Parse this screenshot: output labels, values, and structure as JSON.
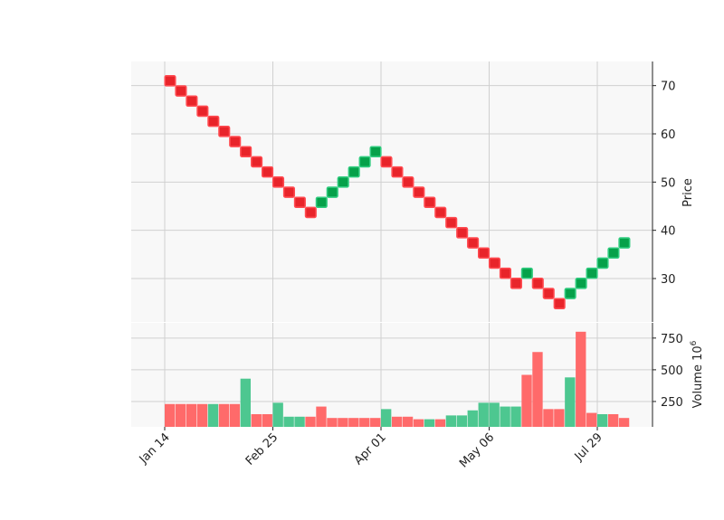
{
  "chart_data": {
    "type": "renko",
    "colors": {
      "up": "#06a14a",
      "down": "#e8242a",
      "up_volume": "#4dc790",
      "down_volume": "#ff6a6a",
      "background": "#f8f8f8",
      "grid": "#d0d0d0"
    },
    "x_ticks": [
      "Jan 14",
      "Feb 25",
      "Apr 01",
      "May 06",
      "Jul 29"
    ],
    "price_panel": {
      "ylabel": "Price",
      "yticks": [
        30,
        40,
        50,
        60,
        70
      ],
      "ylim": [
        21,
        75
      ],
      "brick_size": 2.1,
      "bricks": [
        {
          "i": 0,
          "close": 71.0,
          "dir": "down"
        },
        {
          "i": 1,
          "close": 68.9,
          "dir": "down"
        },
        {
          "i": 2,
          "close": 66.8,
          "dir": "down"
        },
        {
          "i": 3,
          "close": 64.7,
          "dir": "down"
        },
        {
          "i": 4,
          "close": 62.6,
          "dir": "down"
        },
        {
          "i": 5,
          "close": 60.5,
          "dir": "down"
        },
        {
          "i": 6,
          "close": 58.4,
          "dir": "down"
        },
        {
          "i": 7,
          "close": 56.3,
          "dir": "down"
        },
        {
          "i": 8,
          "close": 54.2,
          "dir": "down"
        },
        {
          "i": 9,
          "close": 52.1,
          "dir": "down"
        },
        {
          "i": 10,
          "close": 50.0,
          "dir": "down"
        },
        {
          "i": 11,
          "close": 47.9,
          "dir": "down"
        },
        {
          "i": 12,
          "close": 45.8,
          "dir": "down"
        },
        {
          "i": 13,
          "close": 43.7,
          "dir": "down"
        },
        {
          "i": 14,
          "close": 45.8,
          "dir": "up"
        },
        {
          "i": 15,
          "close": 47.9,
          "dir": "up"
        },
        {
          "i": 16,
          "close": 50.0,
          "dir": "up"
        },
        {
          "i": 17,
          "close": 52.1,
          "dir": "up"
        },
        {
          "i": 18,
          "close": 54.2,
          "dir": "up"
        },
        {
          "i": 19,
          "close": 56.3,
          "dir": "up"
        },
        {
          "i": 20,
          "close": 54.2,
          "dir": "down"
        },
        {
          "i": 21,
          "close": 52.1,
          "dir": "down"
        },
        {
          "i": 22,
          "close": 50.0,
          "dir": "down"
        },
        {
          "i": 23,
          "close": 47.9,
          "dir": "down"
        },
        {
          "i": 24,
          "close": 45.8,
          "dir": "down"
        },
        {
          "i": 25,
          "close": 43.7,
          "dir": "down"
        },
        {
          "i": 26,
          "close": 41.6,
          "dir": "down"
        },
        {
          "i": 27,
          "close": 39.5,
          "dir": "down"
        },
        {
          "i": 28,
          "close": 37.4,
          "dir": "down"
        },
        {
          "i": 29,
          "close": 35.3,
          "dir": "down"
        },
        {
          "i": 30,
          "close": 33.2,
          "dir": "down"
        },
        {
          "i": 31,
          "close": 31.1,
          "dir": "down"
        },
        {
          "i": 32,
          "close": 29.0,
          "dir": "down"
        },
        {
          "i": 33,
          "close": 31.1,
          "dir": "up"
        },
        {
          "i": 34,
          "close": 29.0,
          "dir": "down"
        },
        {
          "i": 35,
          "close": 26.9,
          "dir": "down"
        },
        {
          "i": 36,
          "close": 24.8,
          "dir": "down"
        },
        {
          "i": 37,
          "close": 26.9,
          "dir": "up"
        },
        {
          "i": 38,
          "close": 29.0,
          "dir": "up"
        },
        {
          "i": 39,
          "close": 31.1,
          "dir": "up"
        },
        {
          "i": 40,
          "close": 33.2,
          "dir": "up"
        },
        {
          "i": 41,
          "close": 35.3,
          "dir": "up"
        },
        {
          "i": 42,
          "close": 37.4,
          "dir": "up"
        }
      ]
    },
    "volume_panel": {
      "ylabel": "Volume  10",
      "ylabel_exponent": "6",
      "yticks": [
        250,
        500,
        750
      ],
      "ylim": [
        50,
        870
      ],
      "bars": [
        {
          "i": 0,
          "value": 230,
          "dir": "down"
        },
        {
          "i": 1,
          "value": 230,
          "dir": "down"
        },
        {
          "i": 2,
          "value": 230,
          "dir": "down"
        },
        {
          "i": 3,
          "value": 230,
          "dir": "down"
        },
        {
          "i": 4,
          "value": 230,
          "dir": "up"
        },
        {
          "i": 5,
          "value": 230,
          "dir": "down"
        },
        {
          "i": 6,
          "value": 230,
          "dir": "down"
        },
        {
          "i": 7,
          "value": 430,
          "dir": "up"
        },
        {
          "i": 8,
          "value": 150,
          "dir": "down"
        },
        {
          "i": 9,
          "value": 150,
          "dir": "down"
        },
        {
          "i": 10,
          "value": 240,
          "dir": "up"
        },
        {
          "i": 11,
          "value": 130,
          "dir": "up"
        },
        {
          "i": 12,
          "value": 130,
          "dir": "up"
        },
        {
          "i": 13,
          "value": 130,
          "dir": "down"
        },
        {
          "i": 14,
          "value": 210,
          "dir": "down"
        },
        {
          "i": 15,
          "value": 120,
          "dir": "down"
        },
        {
          "i": 16,
          "value": 120,
          "dir": "down"
        },
        {
          "i": 17,
          "value": 120,
          "dir": "down"
        },
        {
          "i": 18,
          "value": 120,
          "dir": "down"
        },
        {
          "i": 19,
          "value": 120,
          "dir": "down"
        },
        {
          "i": 20,
          "value": 190,
          "dir": "up"
        },
        {
          "i": 21,
          "value": 130,
          "dir": "down"
        },
        {
          "i": 22,
          "value": 130,
          "dir": "down"
        },
        {
          "i": 23,
          "value": 110,
          "dir": "down"
        },
        {
          "i": 24,
          "value": 110,
          "dir": "up"
        },
        {
          "i": 25,
          "value": 110,
          "dir": "down"
        },
        {
          "i": 26,
          "value": 140,
          "dir": "up"
        },
        {
          "i": 27,
          "value": 140,
          "dir": "up"
        },
        {
          "i": 28,
          "value": 180,
          "dir": "up"
        },
        {
          "i": 29,
          "value": 240,
          "dir": "up"
        },
        {
          "i": 30,
          "value": 240,
          "dir": "up"
        },
        {
          "i": 31,
          "value": 210,
          "dir": "up"
        },
        {
          "i": 32,
          "value": 210,
          "dir": "up"
        },
        {
          "i": 33,
          "value": 460,
          "dir": "down"
        },
        {
          "i": 34,
          "value": 640,
          "dir": "down"
        },
        {
          "i": 35,
          "value": 190,
          "dir": "down"
        },
        {
          "i": 36,
          "value": 190,
          "dir": "down"
        },
        {
          "i": 37,
          "value": 440,
          "dir": "up"
        },
        {
          "i": 38,
          "value": 800,
          "dir": "down"
        },
        {
          "i": 39,
          "value": 160,
          "dir": "down"
        },
        {
          "i": 40,
          "value": 150,
          "dir": "up"
        },
        {
          "i": 41,
          "value": 150,
          "dir": "down"
        },
        {
          "i": 42,
          "value": 120,
          "dir": "down"
        }
      ]
    },
    "grid": true
  }
}
